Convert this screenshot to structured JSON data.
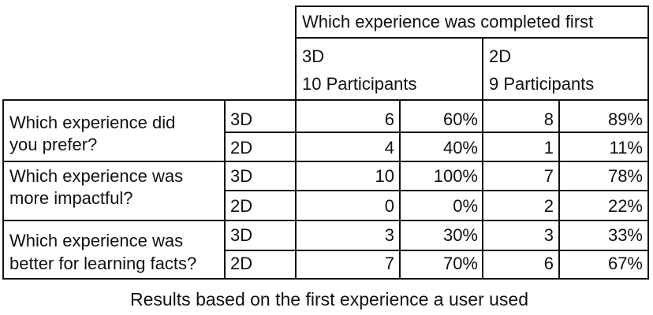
{
  "table": {
    "header": {
      "group_title": "Which experience was completed first",
      "columns": [
        {
          "label": "3D",
          "participants": "10 Participants"
        },
        {
          "label": "2D",
          "participants": "9 Participants"
        }
      ]
    },
    "questions": [
      {
        "lines": [
          "Which experience did",
          "you prefer?"
        ],
        "rows": [
          {
            "option": "3D",
            "values": [
              "6",
              "60%",
              "8",
              "89%"
            ]
          },
          {
            "option": "2D",
            "values": [
              "4",
              "40%",
              "1",
              "11%"
            ]
          }
        ]
      },
      {
        "lines": [
          "Which experience was",
          "more impactful?"
        ],
        "rows": [
          {
            "option": "3D",
            "values": [
              "10",
              "100%",
              "7",
              "78%"
            ]
          },
          {
            "option": "2D",
            "values": [
              "0",
              "0%",
              "2",
              "22%"
            ]
          }
        ]
      },
      {
        "lines": [
          "Which experience was",
          "better for learning facts?"
        ],
        "rows": [
          {
            "option": "3D",
            "values": [
              "3",
              "30%",
              "3",
              "33%"
            ]
          },
          {
            "option": "2D",
            "values": [
              "7",
              "70%",
              "6",
              "67%"
            ]
          }
        ]
      }
    ]
  },
  "caption": "Results based on the first experience a user used"
}
